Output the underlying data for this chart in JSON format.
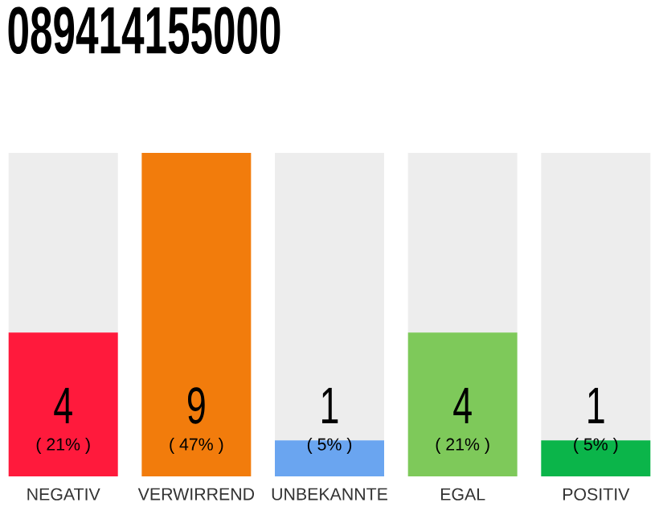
{
  "chart_data": {
    "type": "bar",
    "title": "089414155000",
    "stacked": true,
    "categories": [
      "NEGATIV",
      "VERWIRREND",
      "UNBEKANNTE",
      "EGAL",
      "POSITIV"
    ],
    "series": [
      {
        "values": [
          4,
          9,
          1,
          4,
          1
        ],
        "colors": [
          "#ff1a3c",
          "#f27c0c",
          "#6aa5f0",
          "#7ec95a",
          "#0bb54a"
        ],
        "value_labels": [
          "4",
          "9",
          "1",
          "4",
          "1"
        ]
      },
      {
        "values": [
          5,
          0,
          8,
          5,
          8
        ],
        "color": "#ededed"
      }
    ],
    "tick_labels": "x",
    "annotations": [
      "( 21% )",
      "( 47% )",
      "( 5% )",
      "( 21% )",
      "( 5% )"
    ]
  }
}
